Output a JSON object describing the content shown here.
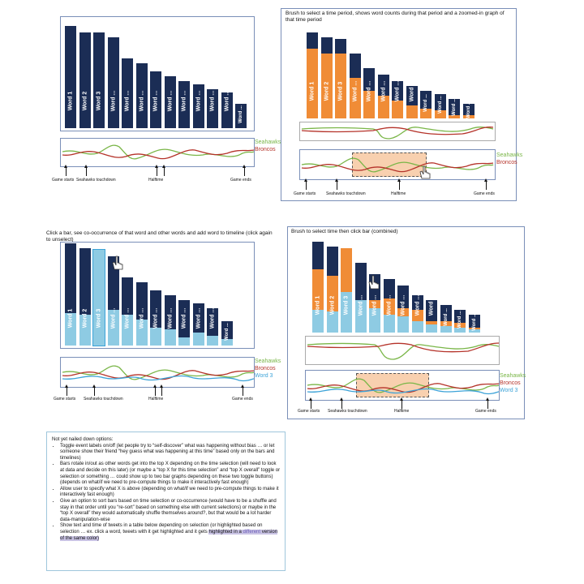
{
  "colors": {
    "navy": "#1b2d55",
    "orange": "#f08c36",
    "lightblue": "#8ecbe3",
    "seahawks": "#7ab648",
    "broncos": "#b5332a",
    "word3": "#3ca3d8"
  },
  "panel1": {
    "bar_labels": [
      "Word 1",
      "Word 2",
      "Word 3",
      "Word ...",
      "Word ...",
      "Word ...",
      "Word ...",
      "Word ...",
      "Word ...",
      "Word ...",
      "Word ...",
      "Word ...",
      "Word ..."
    ],
    "legend": {
      "seahawks": "Seahawks",
      "broncos": "Broncos"
    },
    "events": {
      "start": "Game starts",
      "td": "Seahawks touchdown",
      "half": "Halftime",
      "end": "Game ends"
    }
  },
  "panel2": {
    "caption": "Brush to select a time period, shows word counts during that period and a zoomed-in graph of that time period",
    "bar_labels": [
      "Word 1",
      "Word 2",
      "Word 3",
      "Word ...",
      "Word ...",
      "Word ...",
      "Word ...",
      "Word ...",
      "Word ...",
      "Word ...",
      "Word ...",
      "Word ..."
    ],
    "legend": {
      "seahawks": "Seahawks",
      "broncos": "Broncos"
    },
    "events": {
      "start": "Game starts",
      "td": "Seahawks touchdown",
      "half": "Halftime",
      "end": "Game ends"
    }
  },
  "panel3": {
    "caption": "Click a bar, see co-occurrence of that word and other words and add word to timeline (click again to unselect)",
    "bar_labels": [
      "Word 1",
      "Word 2",
      "Word 3",
      "Word ...",
      "Word ...",
      "Word ...",
      "Word ...",
      "Word ...",
      "Word ...",
      "Word ...",
      "Word ...",
      "Word ..."
    ],
    "legend": {
      "seahawks": "Seahawks",
      "broncos": "Broncos",
      "word3": "Word 3"
    },
    "events": {
      "start": "Game starts",
      "td": "Seahawks touchdown",
      "half": "Halftime",
      "end": "Game ends"
    }
  },
  "panel4": {
    "caption": "Brush to select time then click bar (combined)",
    "bar_labels": [
      "Word 1",
      "Word 2",
      "Word 3",
      "Word ...",
      "Word ...",
      "Word ...",
      "Word ...",
      "Word ...",
      "Word ...",
      "Word ...",
      "Word ...",
      "Word ..."
    ],
    "legend": {
      "seahawks": "Seahawks",
      "broncos": "Broncos",
      "word3": "Word 3"
    },
    "events": {
      "start": "Game starts",
      "td": "Seahawks touchdown",
      "half": "Halftime",
      "end": "Game ends"
    }
  },
  "notes": {
    "heading": "Not yet nailed down options:",
    "items": [
      "Toggle event labels on/off (let people try to “self-discover” what was happening without bias … or let someone show their friend “hey guess what was happening at this time” based only on the bars and timelines)",
      "Bars rotate in/out as other words get into the top X depending on the time selection (will need to look at data and decide on this later) (or maybe a “top X for this time selection” and “top X overall” toggle or selection or something … could show up to two bar graphs depending on these two toggle buttons) (depends on what/if we need to pre-compute things to make it interactively fast enough)",
      "Allow user to specify what X is above (depending on what/if we need to pre-compute things to make it interactively fast enough)",
      "Give an option to sort bars based on time selection or co-occurrence (would have to be a shuffle and stay in that order until you “re-sort” based on something else with current selections) or maybe in the “top X overall” they would automatically shuffle themselves around?, but that would be a lot harder data-manipulation-wise"
    ],
    "last_item_a": "Show text and time of tweets in a table below depending on selection (or highlighted based on selection … ex. click a word, tweets with it get highlighted and it gets",
    "last_item_hl1": "highlighted in a ",
    "last_item_hl2": "different",
    "last_item_hl3": " version of the same color)"
  }
}
